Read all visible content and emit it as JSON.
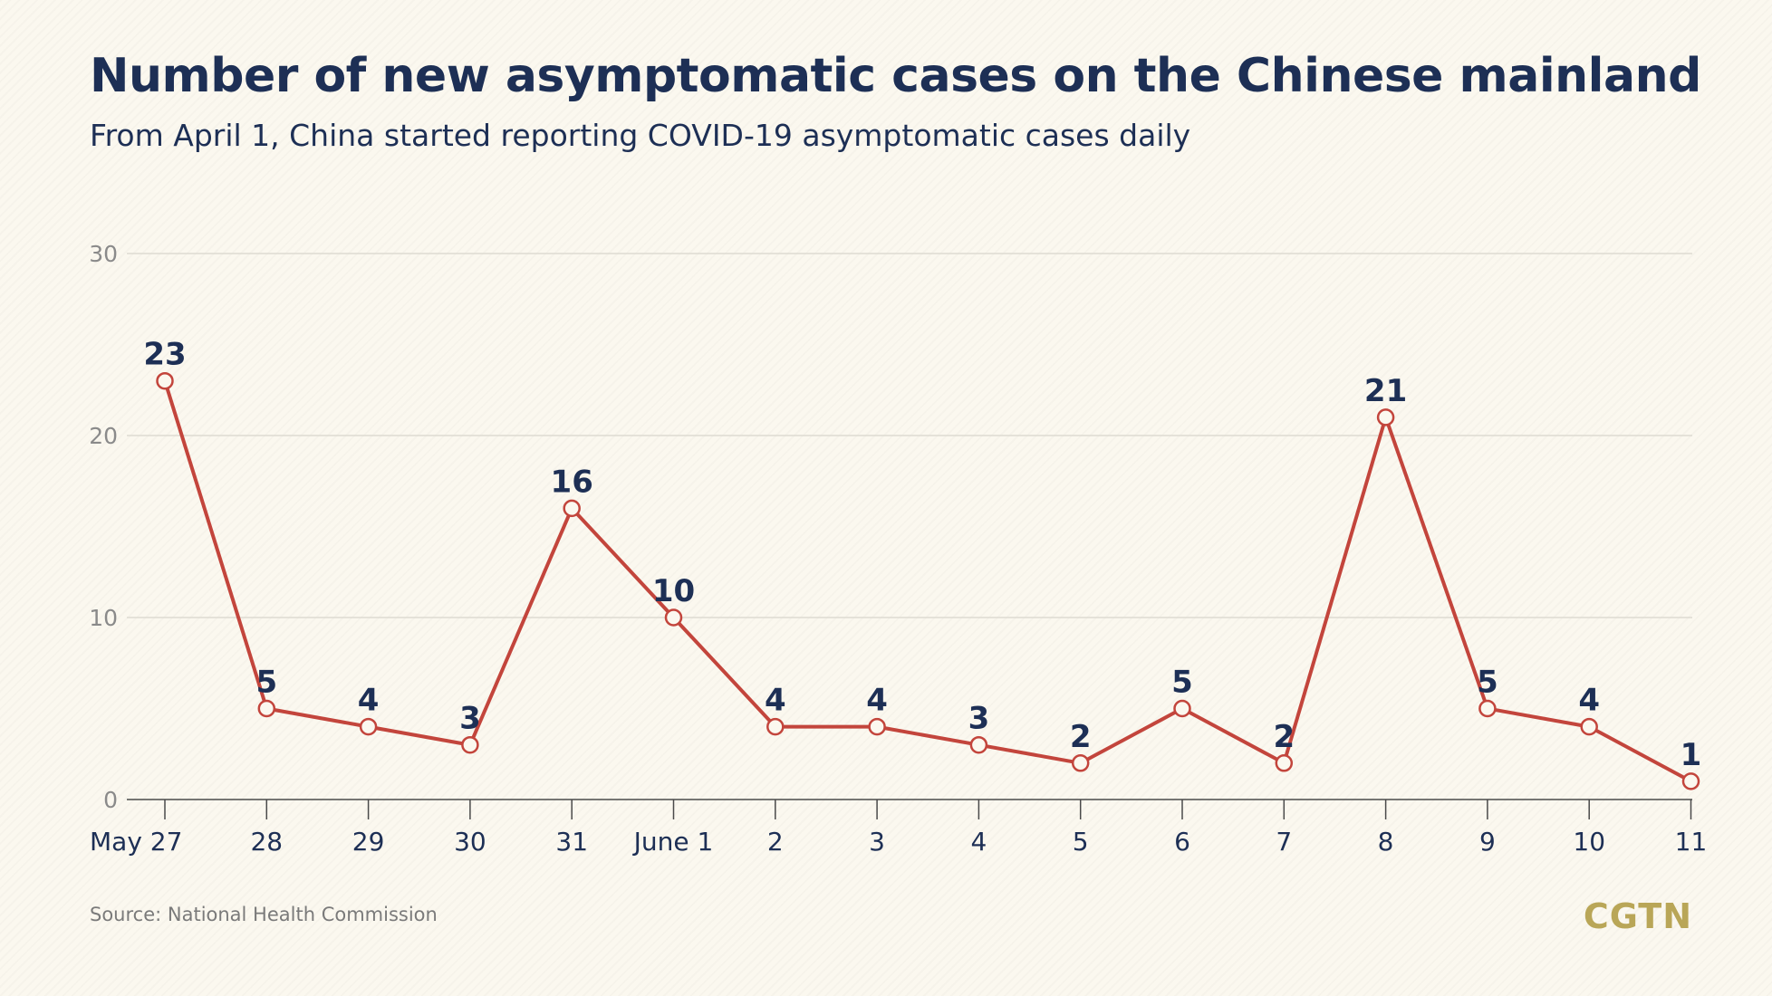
{
  "title": "Number of new asymptomatic cases on the Chinese mainland",
  "subtitle": "From April 1, China started reporting COVID-19 asymptomatic cases daily",
  "source": "Source: National Health Commission",
  "logo": "CGTN",
  "colors": {
    "line": "#c3453c",
    "label": "#1d2f55",
    "grid": "#dedbd2",
    "axis_text": "#8a8a8a",
    "marker_fill": "#fbf8ef"
  },
  "chart_data": {
    "type": "line",
    "categories": [
      "May 27",
      "28",
      "29",
      "30",
      "31",
      "June 1",
      "2",
      "3",
      "4",
      "5",
      "6",
      "7",
      "8",
      "9",
      "10",
      "11"
    ],
    "series": [
      {
        "values": [
          23,
          5,
          4,
          3,
          16,
          10,
          4,
          4,
          3,
          2,
          5,
          2,
          21,
          5,
          4,
          1
        ]
      }
    ],
    "ylim": [
      0,
      30
    ],
    "yticks": [
      0,
      10,
      20,
      30
    ],
    "grid": true,
    "data_labels": true
  }
}
